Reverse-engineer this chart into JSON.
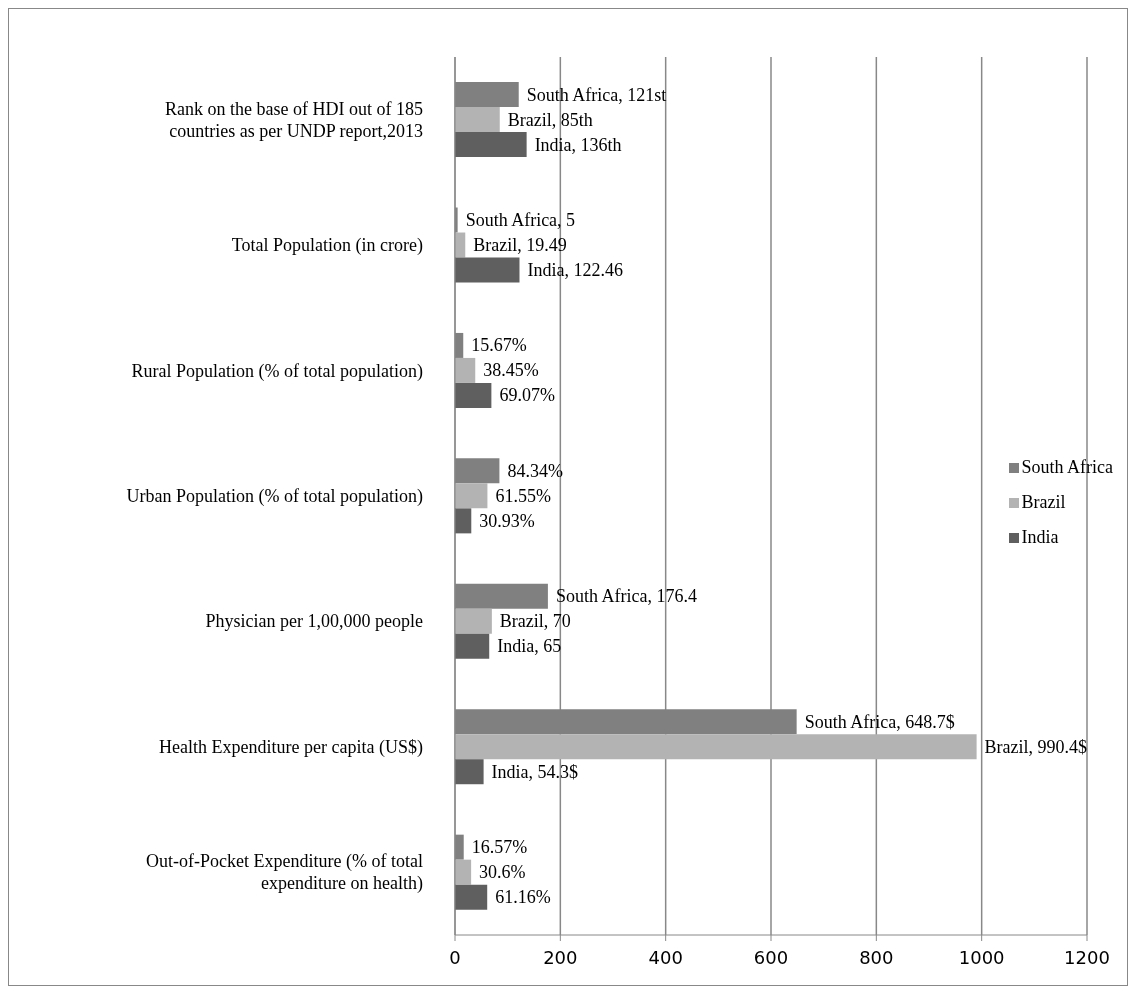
{
  "chart_data": {
    "type": "bar",
    "orientation": "horizontal",
    "categories": [
      "Rank on the base of HDI out of 185 countries as per UNDP report,2013",
      "Total Population (in crore)",
      "Rural Population (% of total population)",
      "Urban Population (% of total population)",
      "Physician per 1,00,000 people",
      "Health Expenditure per capita (US$)",
      "Out-of-Pocket Expenditure (% of total expenditure on health)"
    ],
    "series": [
      {
        "name": "South Africa",
        "color": "#808080",
        "values": [
          121,
          5,
          15.67,
          84.34,
          176.4,
          648.7,
          16.57
        ],
        "value_labels": [
          "South Africa, 121st",
          "South Africa, 5",
          "15.67%",
          "84.34%",
          "South Africa, 176.4",
          "South Africa, 648.7$",
          "16.57%"
        ]
      },
      {
        "name": "Brazil",
        "color": "#b3b3b3",
        "values": [
          85,
          19.49,
          38.45,
          61.55,
          70,
          990.4,
          30.6
        ],
        "value_labels": [
          "Brazil, 85th",
          "Brazil, 19.49",
          "38.45%",
          "61.55%",
          "Brazil, 70",
          "Brazil, 990.4$",
          "30.6%"
        ]
      },
      {
        "name": "India",
        "color": "#5f5f5f",
        "values": [
          136,
          122.46,
          69.07,
          30.93,
          65,
          54.3,
          61.16
        ],
        "value_labels": [
          "India, 136th",
          "India, 122.46",
          "69.07%",
          "30.93%",
          "India, 65",
          "India, 54.3$",
          "61.16%"
        ]
      }
    ],
    "xlim": [
      0,
      1200
    ],
    "xticks": [
      0,
      200,
      400,
      600,
      800,
      1000,
      1200
    ],
    "grid": "x",
    "legend": "right"
  }
}
